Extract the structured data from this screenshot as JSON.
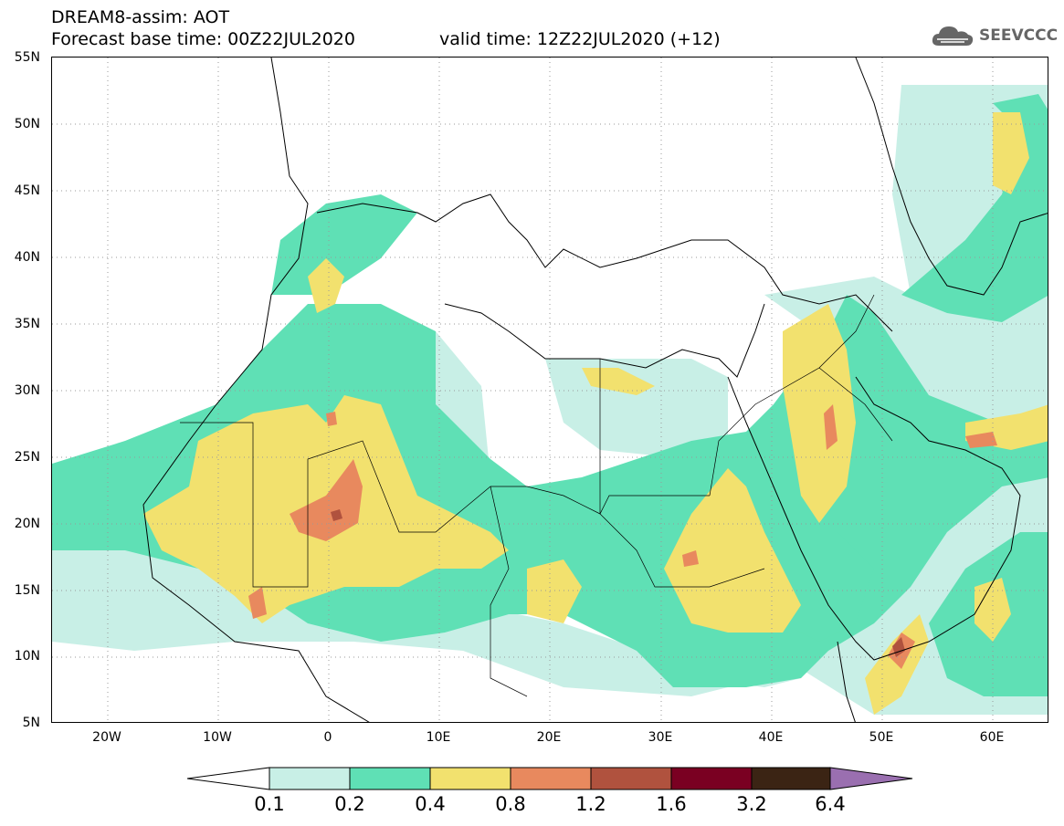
{
  "header": {
    "title": "DREAM8-assim: AOT",
    "base_time": "Forecast base time: 00Z22JUL2020",
    "valid_time": "valid time: 12Z22JUL2020 (+12)"
  },
  "logo": {
    "text": "SEEVCCC",
    "icon": "cloud-icon"
  },
  "map": {
    "lat_range": [
      5,
      55
    ],
    "lon_range": [
      -25,
      65
    ],
    "lat_ticks": [
      "55N",
      "50N",
      "45N",
      "40N",
      "35N",
      "30N",
      "25N",
      "20N",
      "15N",
      "10N",
      "5N"
    ],
    "lon_ticks": [
      "20W",
      "10W",
      "0",
      "10E",
      "20E",
      "30E",
      "40E",
      "50E",
      "60E"
    ],
    "grid": "dotted"
  },
  "colorbar": {
    "labels": [
      "0.1",
      "0.2",
      "0.4",
      "0.8",
      "1.2",
      "1.6",
      "3.2",
      "6.4"
    ],
    "colors": [
      "#c8efe6",
      "#5fe0b5",
      "#f2e16e",
      "#e8895e",
      "#b0523e",
      "#7a0022",
      "#3b2414",
      "#9a6fb0"
    ],
    "low_color": "#ffffff",
    "high_color": "#9a6fb0"
  }
}
